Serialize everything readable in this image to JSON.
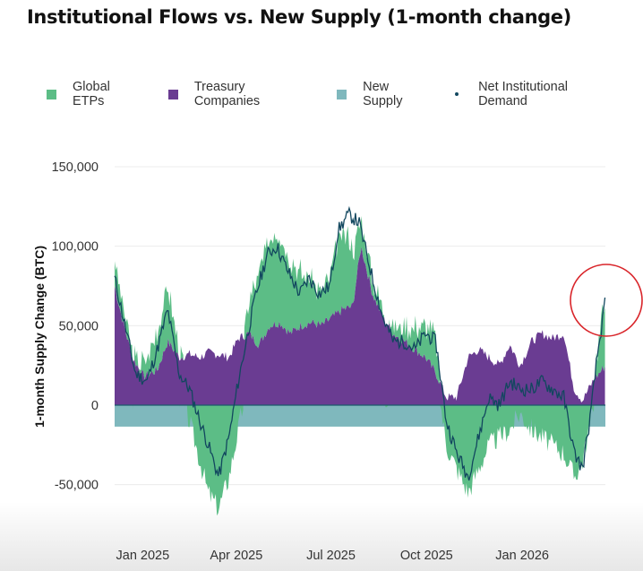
{
  "title": "Institutional Flows vs. New Supply (1-month change)",
  "legend": [
    {
      "label": "Global ETPs",
      "color": "#5cbd86",
      "kind": "area"
    },
    {
      "label": "Treasury Companies",
      "color": "#6a3c92",
      "kind": "area"
    },
    {
      "label": "New Supply",
      "color": "#7fb8bd",
      "kind": "area"
    },
    {
      "label": "Net Institutional Demand",
      "color": "#12475f",
      "kind": "line"
    }
  ],
  "annotation": {
    "kind": "red circle highlight",
    "color": "#d9262b"
  },
  "chart_data": {
    "type": "area",
    "ylabel": "1-month Supply Change (BTC)",
    "ylim": [
      -72000,
      150000
    ],
    "yticks": [
      {
        "value": 150000,
        "label": "150,000"
      },
      {
        "value": 100000,
        "label": "100,000"
      },
      {
        "value": 50000,
        "label": "50,000"
      },
      {
        "value": 0,
        "label": "0"
      },
      {
        "value": -50000,
        "label": "-50,000"
      }
    ],
    "xticks": [
      {
        "date": "2025-01-01",
        "label": "Jan 2025"
      },
      {
        "date": "2025-04-01",
        "label": "Apr 2025"
      },
      {
        "date": "2025-07-01",
        "label": "Jul 2025"
      },
      {
        "date": "2025-10-01",
        "label": "Oct 2025"
      },
      {
        "date": "2026-01-01",
        "label": "Jan 2026"
      }
    ],
    "x_range": [
      "2024-12-05",
      "2026-03-22"
    ],
    "grid": "horizontal",
    "series": [
      {
        "name": "Treasury Companies",
        "dates": [
          "2024-12-05",
          "2024-12-12",
          "2024-12-22",
          "2025-01-02",
          "2025-01-15",
          "2025-01-25",
          "2025-02-05",
          "2025-02-15",
          "2025-02-25",
          "2025-03-05",
          "2025-03-15",
          "2025-03-25",
          "2025-04-03",
          "2025-04-13",
          "2025-04-23",
          "2025-05-03",
          "2025-05-13",
          "2025-05-23",
          "2025-06-02",
          "2025-06-12",
          "2025-06-22",
          "2025-07-02",
          "2025-07-12",
          "2025-07-22",
          "2025-07-30",
          "2025-08-10",
          "2025-08-20",
          "2025-08-30",
          "2025-09-10",
          "2025-09-20",
          "2025-09-30",
          "2025-10-10",
          "2025-10-20",
          "2025-10-30",
          "2025-11-10",
          "2025-11-20",
          "2025-11-30",
          "2025-12-10",
          "2025-12-20",
          "2025-12-30",
          "2026-01-10",
          "2026-01-20",
          "2026-01-30",
          "2026-02-10",
          "2026-02-20",
          "2026-02-28",
          "2026-03-10",
          "2026-03-22"
        ],
        "values": [
          75000,
          55000,
          30000,
          18000,
          22000,
          40000,
          30000,
          32000,
          30000,
          33000,
          32000,
          30000,
          42000,
          45000,
          38000,
          50000,
          52000,
          45000,
          50000,
          52000,
          50000,
          55000,
          60000,
          62000,
          100000,
          70000,
          55000,
          45000,
          40000,
          35000,
          30000,
          20000,
          5000,
          5000,
          30000,
          35000,
          30000,
          25000,
          38000,
          25000,
          40000,
          45000,
          42000,
          45000,
          10000,
          3000,
          15000,
          25000
        ]
      },
      {
        "name": "Global ETPs",
        "dates": [
          "2024-12-05",
          "2024-12-15",
          "2024-12-25",
          "2025-01-05",
          "2025-01-15",
          "2025-01-25",
          "2025-02-05",
          "2025-02-15",
          "2025-02-25",
          "2025-03-05",
          "2025-03-15",
          "2025-03-25",
          "2025-04-03",
          "2025-04-12",
          "2025-04-20",
          "2025-05-01",
          "2025-05-10",
          "2025-05-20",
          "2025-06-01",
          "2025-06-10",
          "2025-06-20",
          "2025-06-30",
          "2025-07-08",
          "2025-07-18",
          "2025-07-28",
          "2025-08-10",
          "2025-08-20",
          "2025-08-30",
          "2025-09-10",
          "2025-09-20",
          "2025-09-30",
          "2025-10-10",
          "2025-10-20",
          "2025-10-30",
          "2025-11-10",
          "2025-11-20",
          "2025-11-30",
          "2025-12-10",
          "2025-12-20",
          "2025-12-30",
          "2026-01-10",
          "2026-01-20",
          "2026-01-30",
          "2026-02-10",
          "2026-02-20",
          "2026-02-28",
          "2026-03-08",
          "2026-03-14",
          "2026-03-22"
        ],
        "values": [
          18000,
          8000,
          3000,
          10000,
          25000,
          35000,
          5000,
          -10000,
          -35000,
          -55000,
          -65000,
          -45000,
          -15000,
          15000,
          40000,
          55000,
          60000,
          50000,
          35000,
          30000,
          20000,
          25000,
          45000,
          45000,
          20000,
          10000,
          5000,
          5000,
          10000,
          15000,
          20000,
          22000,
          -25000,
          -40000,
          -55000,
          -40000,
          -25000,
          -20000,
          -15000,
          -5000,
          -15000,
          -20000,
          -25000,
          -30000,
          -45000,
          -35000,
          -10000,
          15000,
          45000
        ]
      },
      {
        "name": "New Supply",
        "dates": [
          "2024-12-05",
          "2026-03-22"
        ],
        "values": [
          -13500,
          -13500
        ]
      },
      {
        "name": "Net Institutional Demand",
        "dates": [
          "2024-12-05",
          "2024-12-15",
          "2024-12-25",
          "2025-01-05",
          "2025-01-15",
          "2025-01-25",
          "2025-02-05",
          "2025-02-15",
          "2025-02-25",
          "2025-03-05",
          "2025-03-15",
          "2025-03-25",
          "2025-04-03",
          "2025-04-12",
          "2025-04-20",
          "2025-05-01",
          "2025-05-10",
          "2025-05-20",
          "2025-06-01",
          "2025-06-10",
          "2025-06-20",
          "2025-06-30",
          "2025-07-08",
          "2025-07-18",
          "2025-07-28",
          "2025-08-10",
          "2025-08-20",
          "2025-08-30",
          "2025-09-10",
          "2025-09-20",
          "2025-09-30",
          "2025-10-10",
          "2025-10-20",
          "2025-10-30",
          "2025-11-10",
          "2025-11-20",
          "2025-11-30",
          "2025-12-10",
          "2025-12-20",
          "2025-12-30",
          "2026-01-10",
          "2026-01-20",
          "2026-01-30",
          "2026-02-10",
          "2026-02-20",
          "2026-02-28",
          "2026-03-08",
          "2026-03-14",
          "2026-03-22"
        ],
        "values": [
          80000,
          50000,
          20000,
          15000,
          35000,
          60000,
          20000,
          10000,
          -10000,
          -25000,
          -45000,
          -20000,
          15000,
          45000,
          70000,
          95000,
          100000,
          85000,
          70000,
          80000,
          70000,
          75000,
          110000,
          120000,
          115000,
          80000,
          55000,
          40000,
          40000,
          35000,
          45000,
          40000,
          -10000,
          -30000,
          -45000,
          -20000,
          5000,
          0,
          15000,
          10000,
          10000,
          15000,
          10000,
          5000,
          -30000,
          -40000,
          -5000,
          30000,
          65000
        ]
      }
    ]
  }
}
